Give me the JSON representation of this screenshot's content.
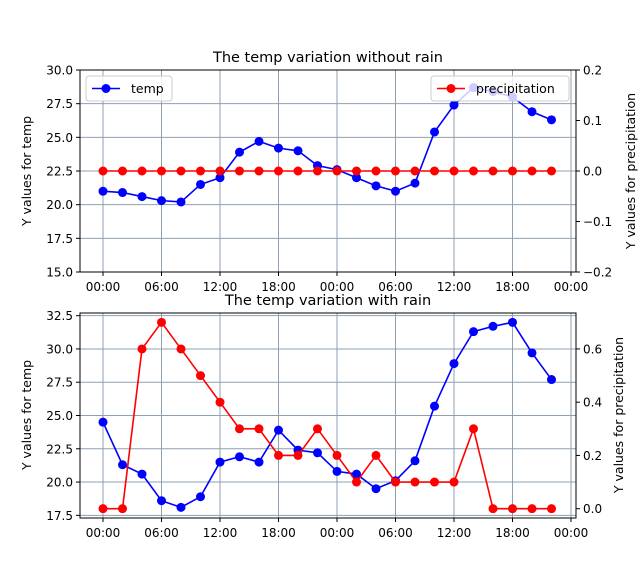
{
  "chart_data": [
    {
      "type": "line",
      "title": "The temp variation without rain",
      "ylabel_left": "Y values for temp",
      "ylabel_right": "Y values for precipitation",
      "x": [
        "00:00",
        "02:00",
        "04:00",
        "06:00",
        "08:00",
        "10:00",
        "12:00",
        "14:00",
        "16:00",
        "18:00",
        "20:00",
        "22:00",
        "00:00",
        "02:00",
        "04:00",
        "06:00",
        "08:00",
        "10:00",
        "12:00",
        "14:00",
        "16:00",
        "18:00",
        "20:00",
        "22:00"
      ],
      "xticks": [
        "00:00",
        "06:00",
        "12:00",
        "18:00",
        "00:00",
        "06:00",
        "12:00",
        "18:00",
        "00:00"
      ],
      "ylim_left": [
        15.0,
        30.0
      ],
      "yticks_left": [
        "15.0",
        "17.5",
        "20.0",
        "22.5",
        "25.0",
        "27.5",
        "30.0"
      ],
      "ylim_right": [
        -0.2,
        0.2
      ],
      "yticks_right": [
        "−0.2",
        "−0.1",
        "0.0",
        "0.1",
        "0.2"
      ],
      "grid": true,
      "series": [
        {
          "name": "temp",
          "axis": "left",
          "color": "#0000ff",
          "values": [
            21.0,
            20.9,
            20.6,
            20.3,
            20.2,
            21.5,
            22.0,
            23.9,
            24.7,
            24.2,
            24.0,
            22.9,
            22.6,
            22.0,
            21.4,
            21.0,
            21.6,
            25.4,
            27.4,
            28.7,
            28.4,
            28.0,
            26.9,
            26.3
          ],
          "legend": "top-left"
        },
        {
          "name": "precipitation",
          "axis": "right",
          "color": "#ff0000",
          "values": [
            0,
            0,
            0,
            0,
            0,
            0,
            0,
            0,
            0,
            0,
            0,
            0,
            0,
            0,
            0,
            0,
            0,
            0,
            0,
            0,
            0,
            0,
            0,
            0
          ],
          "legend": "top-right"
        }
      ]
    },
    {
      "type": "line",
      "title": "The temp variation with rain",
      "ylabel_left": "Y values for temp",
      "ylabel_right": "Y values for precipitation",
      "x": [
        "00:00",
        "02:00",
        "04:00",
        "06:00",
        "08:00",
        "10:00",
        "12:00",
        "14:00",
        "16:00",
        "18:00",
        "20:00",
        "22:00",
        "00:00",
        "02:00",
        "04:00",
        "06:00",
        "08:00",
        "10:00",
        "12:00",
        "14:00",
        "16:00",
        "18:00",
        "20:00",
        "22:00"
      ],
      "xticks": [
        "00:00",
        "06:00",
        "12:00",
        "18:00",
        "00:00",
        "06:00",
        "12:00",
        "18:00",
        "00:00"
      ],
      "ylim_left": [
        17.3,
        32.7
      ],
      "yticks_left": [
        "17.5",
        "20.0",
        "22.5",
        "25.0",
        "27.5",
        "30.0",
        "32.5"
      ],
      "ylim_right": [
        -0.035,
        0.735
      ],
      "yticks_right": [
        "0.0",
        "0.2",
        "0.4",
        "0.6"
      ],
      "grid": true,
      "series": [
        {
          "name": "temp",
          "axis": "left",
          "color": "#0000ff",
          "values": [
            24.5,
            21.3,
            20.6,
            18.6,
            18.1,
            18.9,
            21.5,
            21.9,
            21.5,
            23.9,
            22.4,
            22.2,
            20.8,
            20.6,
            19.5,
            20.1,
            21.6,
            25.7,
            28.9,
            31.3,
            31.7,
            32.0,
            29.7,
            27.7
          ]
        },
        {
          "name": "precipitation",
          "axis": "right",
          "color": "#ff0000",
          "values": [
            0.0,
            0.0,
            0.6,
            0.7,
            0.6,
            0.5,
            0.4,
            0.3,
            0.3,
            0.2,
            0.2,
            0.3,
            0.2,
            0.1,
            0.2,
            0.1,
            0.1,
            0.1,
            0.1,
            0.3,
            0.0,
            0.0,
            0.0,
            0.0
          ]
        }
      ]
    }
  ]
}
